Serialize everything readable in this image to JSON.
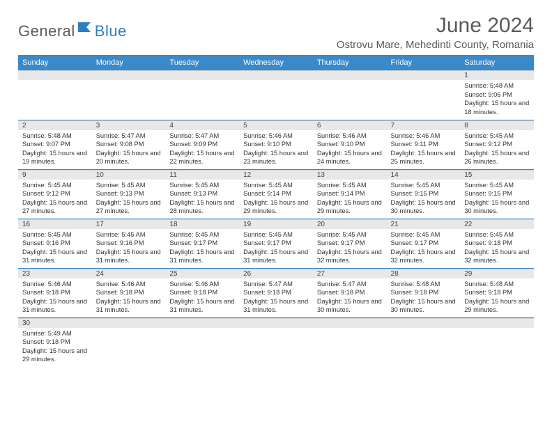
{
  "logo": {
    "general": "General",
    "blue": "Blue"
  },
  "title": "June 2024",
  "location": "Ostrovu Mare, Mehedinti County, Romania",
  "colors": {
    "header_bg": "#3a89c9",
    "header_fg": "#ffffff",
    "day_header_bg": "#e8e8e8",
    "border": "#3a89c9",
    "logo_gray": "#5a5a5a",
    "logo_blue": "#2f7fbf",
    "title_color": "#595959"
  },
  "day_names": [
    "Sunday",
    "Monday",
    "Tuesday",
    "Wednesday",
    "Thursday",
    "Friday",
    "Saturday"
  ],
  "weeks": [
    [
      null,
      null,
      null,
      null,
      null,
      null,
      {
        "n": "1",
        "sr": "5:48 AM",
        "ss": "9:06 PM",
        "dl": "15 hours and 18 minutes."
      }
    ],
    [
      {
        "n": "2",
        "sr": "5:48 AM",
        "ss": "9:07 PM",
        "dl": "15 hours and 19 minutes."
      },
      {
        "n": "3",
        "sr": "5:47 AM",
        "ss": "9:08 PM",
        "dl": "15 hours and 20 minutes."
      },
      {
        "n": "4",
        "sr": "5:47 AM",
        "ss": "9:09 PM",
        "dl": "15 hours and 22 minutes."
      },
      {
        "n": "5",
        "sr": "5:46 AM",
        "ss": "9:10 PM",
        "dl": "15 hours and 23 minutes."
      },
      {
        "n": "6",
        "sr": "5:46 AM",
        "ss": "9:10 PM",
        "dl": "15 hours and 24 minutes."
      },
      {
        "n": "7",
        "sr": "5:46 AM",
        "ss": "9:11 PM",
        "dl": "15 hours and 25 minutes."
      },
      {
        "n": "8",
        "sr": "5:45 AM",
        "ss": "9:12 PM",
        "dl": "15 hours and 26 minutes."
      }
    ],
    [
      {
        "n": "9",
        "sr": "5:45 AM",
        "ss": "9:12 PM",
        "dl": "15 hours and 27 minutes."
      },
      {
        "n": "10",
        "sr": "5:45 AM",
        "ss": "9:13 PM",
        "dl": "15 hours and 27 minutes."
      },
      {
        "n": "11",
        "sr": "5:45 AM",
        "ss": "9:13 PM",
        "dl": "15 hours and 28 minutes."
      },
      {
        "n": "12",
        "sr": "5:45 AM",
        "ss": "9:14 PM",
        "dl": "15 hours and 29 minutes."
      },
      {
        "n": "13",
        "sr": "5:45 AM",
        "ss": "9:14 PM",
        "dl": "15 hours and 29 minutes."
      },
      {
        "n": "14",
        "sr": "5:45 AM",
        "ss": "9:15 PM",
        "dl": "15 hours and 30 minutes."
      },
      {
        "n": "15",
        "sr": "5:45 AM",
        "ss": "9:15 PM",
        "dl": "15 hours and 30 minutes."
      }
    ],
    [
      {
        "n": "16",
        "sr": "5:45 AM",
        "ss": "9:16 PM",
        "dl": "15 hours and 31 minutes."
      },
      {
        "n": "17",
        "sr": "5:45 AM",
        "ss": "9:16 PM",
        "dl": "15 hours and 31 minutes."
      },
      {
        "n": "18",
        "sr": "5:45 AM",
        "ss": "9:17 PM",
        "dl": "15 hours and 31 minutes."
      },
      {
        "n": "19",
        "sr": "5:45 AM",
        "ss": "9:17 PM",
        "dl": "15 hours and 31 minutes."
      },
      {
        "n": "20",
        "sr": "5:45 AM",
        "ss": "9:17 PM",
        "dl": "15 hours and 32 minutes."
      },
      {
        "n": "21",
        "sr": "5:45 AM",
        "ss": "9:17 PM",
        "dl": "15 hours and 32 minutes."
      },
      {
        "n": "22",
        "sr": "5:45 AM",
        "ss": "9:18 PM",
        "dl": "15 hours and 32 minutes."
      }
    ],
    [
      {
        "n": "23",
        "sr": "5:46 AM",
        "ss": "9:18 PM",
        "dl": "15 hours and 31 minutes."
      },
      {
        "n": "24",
        "sr": "5:46 AM",
        "ss": "9:18 PM",
        "dl": "15 hours and 31 minutes."
      },
      {
        "n": "25",
        "sr": "5:46 AM",
        "ss": "9:18 PM",
        "dl": "15 hours and 31 minutes."
      },
      {
        "n": "26",
        "sr": "5:47 AM",
        "ss": "9:18 PM",
        "dl": "15 hours and 31 minutes."
      },
      {
        "n": "27",
        "sr": "5:47 AM",
        "ss": "9:18 PM",
        "dl": "15 hours and 30 minutes."
      },
      {
        "n": "28",
        "sr": "5:48 AM",
        "ss": "9:18 PM",
        "dl": "15 hours and 30 minutes."
      },
      {
        "n": "29",
        "sr": "5:48 AM",
        "ss": "9:18 PM",
        "dl": "15 hours and 29 minutes."
      }
    ],
    [
      {
        "n": "30",
        "sr": "5:49 AM",
        "ss": "9:18 PM",
        "dl": "15 hours and 29 minutes."
      },
      null,
      null,
      null,
      null,
      null,
      null
    ]
  ],
  "labels": {
    "sunrise": "Sunrise:",
    "sunset": "Sunset:",
    "daylight": "Daylight:"
  }
}
